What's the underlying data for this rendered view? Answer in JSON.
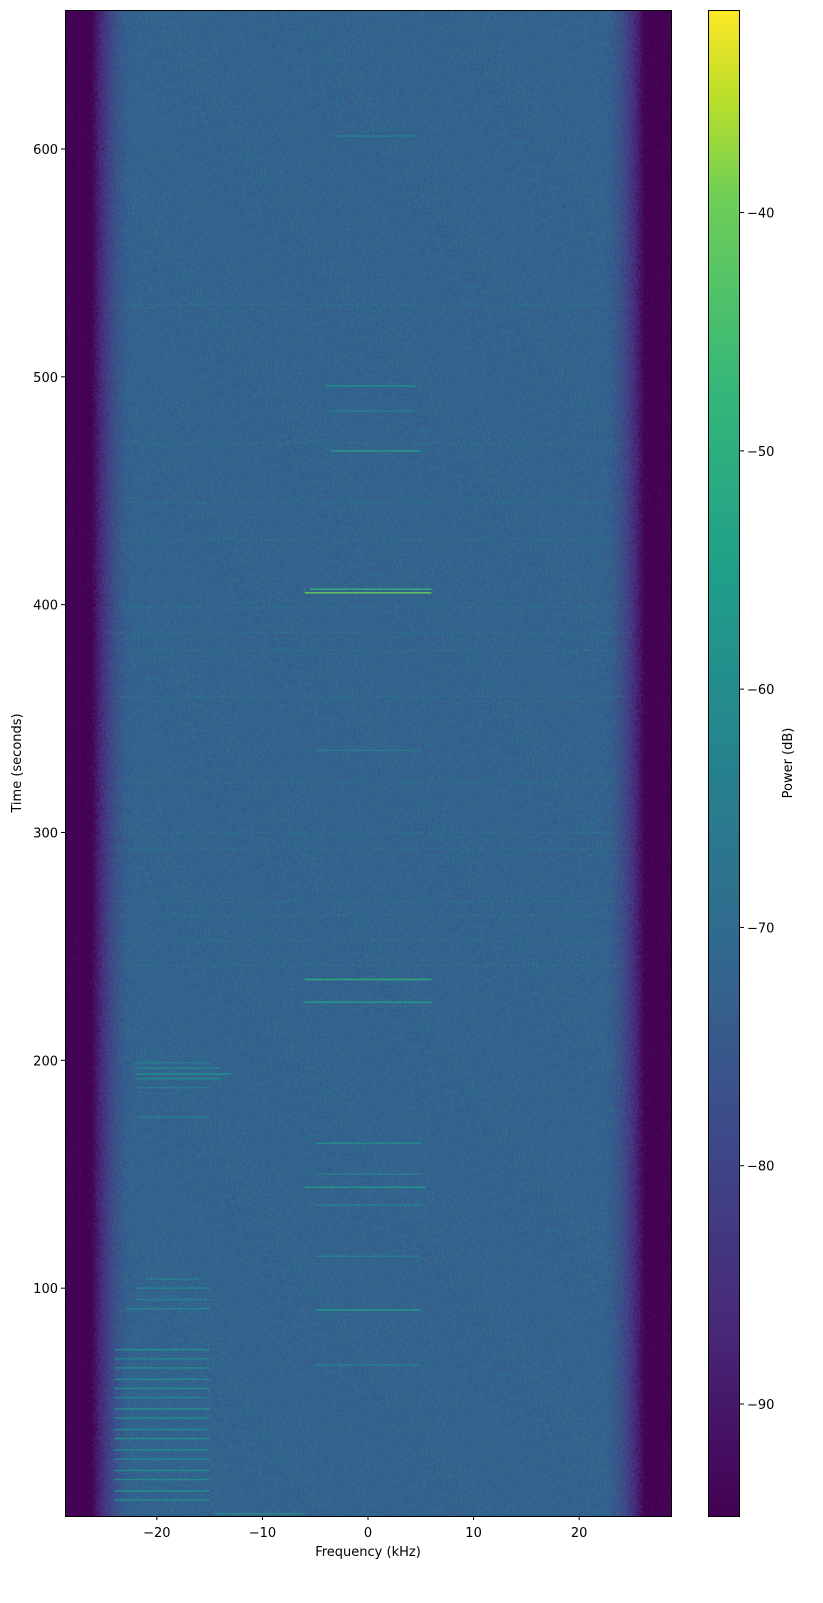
{
  "chart_data": {
    "type": "heatmap",
    "subtype": "spectrogram",
    "title": "",
    "xlabel": "Frequency (kHz)",
    "ylabel": "Time (seconds)",
    "colorbar_label": "Power (dB)",
    "colormap": "viridis",
    "xlim": [
      -28.7,
      28.7
    ],
    "ylim": [
      0,
      661
    ],
    "clim": [
      -94.7,
      -31.5
    ],
    "x_ticks": [
      -20,
      -10,
      0,
      10,
      20
    ],
    "x_tick_labels": [
      "−20",
      "−10",
      "0",
      "10",
      "20"
    ],
    "y_ticks": [
      100,
      200,
      300,
      400,
      500,
      600
    ],
    "y_tick_labels": [
      "100",
      "200",
      "300",
      "400",
      "500",
      "600"
    ],
    "colorbar_ticks": [
      -90,
      -80,
      -70,
      -60,
      -50,
      -40
    ],
    "colorbar_tick_labels": [
      "−90",
      "−80",
      "−70",
      "−60",
      "−50",
      "−40"
    ],
    "grid": false,
    "background_level_db": -72,
    "passband_edges_khz": [
      -25,
      25
    ],
    "bursts": [
      {
        "t": 605.7,
        "f": [
          -3,
          4.5
        ],
        "db": -64
      },
      {
        "t": 496,
        "f": [
          -4,
          4.5
        ],
        "db": -58
      },
      {
        "t": 485,
        "f": [
          -3.5,
          4.5
        ],
        "db": -64
      },
      {
        "t": 467.5,
        "f": [
          -3.5,
          5
        ],
        "db": -55
      },
      {
        "t": 406.8,
        "f": [
          -5.5,
          6
        ],
        "db": -48
      },
      {
        "t": 405.2,
        "f": [
          -6,
          6
        ],
        "db": -40
      },
      {
        "t": 336,
        "f": [
          -5,
          5
        ],
        "db": -64
      },
      {
        "t": 235.5,
        "f": [
          -6,
          6
        ],
        "db": -50
      },
      {
        "t": 225.5,
        "f": [
          -6,
          6
        ],
        "db": -55
      },
      {
        "t": 163.6,
        "f": [
          -5,
          5
        ],
        "db": -60
      },
      {
        "t": 150,
        "f": [
          -5,
          5
        ],
        "db": -64
      },
      {
        "t": 144.3,
        "f": [
          -6,
          5.5
        ],
        "db": -57
      },
      {
        "t": 136.4,
        "f": [
          -5,
          5
        ],
        "db": -63
      },
      {
        "t": 114,
        "f": [
          -5,
          5
        ],
        "db": -64
      },
      {
        "t": 90.4,
        "f": [
          -5,
          5
        ],
        "db": -56
      },
      {
        "t": 66.2,
        "f": [
          -5,
          5
        ],
        "db": -63
      },
      {
        "t": 1,
        "f": [
          -14.5,
          -6
        ],
        "db": -60
      },
      {
        "t": 199,
        "f": [
          -22,
          -15
        ],
        "db": -64
      },
      {
        "t": 196.5,
        "f": [
          -22,
          -14
        ],
        "db": -62
      },
      {
        "t": 194,
        "f": [
          -22,
          -13
        ],
        "db": -58
      },
      {
        "t": 192,
        "f": [
          -22,
          -14
        ],
        "db": -60
      },
      {
        "t": 188,
        "f": [
          -22,
          -15
        ],
        "db": -65
      },
      {
        "t": 175,
        "f": [
          -22,
          -15
        ],
        "db": -64
      },
      {
        "t": 104,
        "f": [
          -21,
          -16
        ],
        "db": -64
      },
      {
        "t": 100,
        "f": [
          -22,
          -15
        ],
        "db": -62
      },
      {
        "t": 95,
        "f": [
          -22,
          -15
        ],
        "db": -63
      },
      {
        "t": 91,
        "f": [
          -23,
          -15
        ],
        "db": -62
      },
      {
        "t": 73,
        "f": [
          -24,
          -15
        ],
        "db": -58
      },
      {
        "t": 69,
        "f": [
          -24,
          -15
        ],
        "db": -62
      },
      {
        "t": 65,
        "f": [
          -24,
          -15
        ],
        "db": -60
      },
      {
        "t": 60,
        "f": [
          -24,
          -15
        ],
        "db": -61
      },
      {
        "t": 56,
        "f": [
          -24,
          -15
        ],
        "db": -60
      },
      {
        "t": 52,
        "f": [
          -24,
          -15
        ],
        "db": -62
      },
      {
        "t": 47,
        "f": [
          -24,
          -15
        ],
        "db": -59
      },
      {
        "t": 43,
        "f": [
          -24,
          -15
        ],
        "db": -60
      },
      {
        "t": 38,
        "f": [
          -24,
          -15
        ],
        "db": -61
      },
      {
        "t": 34,
        "f": [
          -24,
          -15
        ],
        "db": -58
      },
      {
        "t": 29,
        "f": [
          -24,
          -15
        ],
        "db": -60
      },
      {
        "t": 25,
        "f": [
          -24,
          -15
        ],
        "db": -62
      },
      {
        "t": 20,
        "f": [
          -24,
          -15
        ],
        "db": -59
      },
      {
        "t": 16,
        "f": [
          -24,
          -15
        ],
        "db": -60
      },
      {
        "t": 11,
        "f": [
          -24,
          -15
        ],
        "db": -58
      },
      {
        "t": 7,
        "f": [
          -24,
          -15
        ],
        "db": -60
      }
    ],
    "wideband_lines_t": [
      532,
      471,
      445,
      429,
      399,
      388,
      380,
      360,
      322,
      300,
      293,
      270,
      264,
      253,
      242
    ]
  }
}
